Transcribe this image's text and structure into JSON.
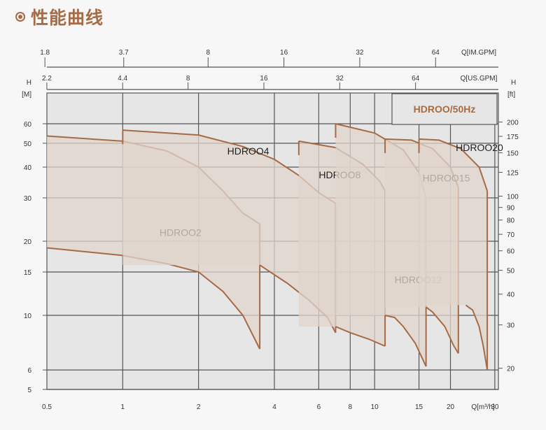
{
  "header": {
    "title": "性能曲线",
    "bullet_icon": "circle-bullet-icon",
    "accent_color": "#a66b45"
  },
  "chart_data": {
    "type": "area",
    "x_scale": "log",
    "y_scale": "log",
    "grid": true,
    "xlabel": "Q[m³/h]",
    "ylabel_left": "H",
    "ylabel_left_unit": "[M]",
    "ylabel_right": "H",
    "ylabel_right_unit": "[ft]",
    "top_axis_1_label": "Q[IM.GPM]",
    "top_axis_2_label": "Q[US.GPM]",
    "xlim": [
      0.5,
      31
    ],
    "ylim": [
      5,
      80
    ],
    "x_ticks": [
      0.5,
      1,
      2,
      4,
      6,
      8,
      10,
      15,
      20,
      30
    ],
    "x_tick_labels": [
      "0.5",
      "1",
      "2",
      "4",
      "6",
      "8",
      "10",
      "15",
      "20",
      "30"
    ],
    "y_ticks": [
      5,
      6,
      10,
      15,
      20,
      30,
      40,
      50,
      60
    ],
    "y_tick_labels": [
      "5",
      "6",
      "10",
      "15",
      "20",
      "30",
      "40",
      "50",
      "60"
    ],
    "right_ticks_ft": [
      20,
      30,
      40,
      50,
      60,
      70,
      80,
      90,
      100,
      125,
      150,
      175,
      200
    ],
    "right_tick_labels": [
      "20",
      "30",
      "40",
      "50",
      "60",
      "70",
      "80",
      "90",
      "100",
      "125",
      "150",
      "175",
      "200"
    ],
    "top_usgpm_ticks": [
      2.2,
      4.4,
      8,
      16,
      32,
      64
    ],
    "top_usgpm_labels": [
      "2.2",
      "4.4",
      "8",
      "16",
      "32",
      "64"
    ],
    "top_imgpm_ticks": [
      1.8,
      3.7,
      8,
      16,
      32,
      64
    ],
    "top_imgpm_labels": [
      "1.8",
      "3.7",
      "8",
      "16",
      "32",
      "64"
    ],
    "legend": "HDROO/50Hz",
    "legend_position": "top-right",
    "fill_color": "#e0d4cc",
    "line_color": "#a66b45",
    "series": [
      {
        "name": "HDROO2",
        "upper": [
          [
            0.5,
            53.5
          ],
          [
            1,
            51
          ],
          [
            1.5,
            46.5
          ],
          [
            2,
            40
          ],
          [
            2.5,
            32
          ],
          [
            3,
            26
          ],
          [
            3.5,
            23.5
          ]
        ],
        "lower": [
          [
            0.5,
            18.8
          ],
          [
            1,
            17.5
          ],
          [
            1.5,
            16.2
          ],
          [
            2,
            15
          ],
          [
            2.5,
            12.5
          ],
          [
            3,
            10
          ],
          [
            3.5,
            7.3
          ]
        ],
        "label_at": [
          1.4,
          21
        ]
      },
      {
        "name": "HDROO4",
        "upper": [
          [
            1,
            56.5
          ],
          [
            2,
            54
          ],
          [
            3,
            48.5
          ],
          [
            4,
            43
          ],
          [
            5,
            37
          ],
          [
            6,
            31.5
          ],
          [
            7,
            28.5
          ]
        ],
        "lower": [
          [
            3.5,
            16
          ],
          [
            4.5,
            13.5
          ],
          [
            5.5,
            11.5
          ],
          [
            6.5,
            9.8
          ],
          [
            7,
            8.5
          ]
        ],
        "label_at": [
          2.6,
          45
        ]
      },
      {
        "name": "HDROO8",
        "upper": [
          [
            5,
            51
          ],
          [
            7,
            48
          ],
          [
            9,
            41
          ],
          [
            10.5,
            35
          ],
          [
            11,
            32
          ]
        ],
        "lower": [
          [
            7,
            9
          ],
          [
            8,
            8.5
          ],
          [
            9.5,
            8
          ],
          [
            11,
            7.5
          ]
        ],
        "label_at": [
          6,
          36
        ]
      },
      {
        "name": "HDROO12",
        "upper": [
          [
            7,
            60
          ],
          [
            10,
            55
          ],
          [
            13,
            47
          ],
          [
            15,
            38
          ],
          [
            16,
            30
          ]
        ],
        "lower": [
          [
            11,
            10
          ],
          [
            12,
            9.8
          ],
          [
            13,
            9
          ],
          [
            14.5,
            7.7
          ],
          [
            16,
            6.2
          ]
        ],
        "label_at": [
          12,
          13.5
        ]
      },
      {
        "name": "HDROO15",
        "upper": [
          [
            11,
            52
          ],
          [
            14,
            51.5
          ],
          [
            17,
            47.5
          ],
          [
            20,
            40
          ],
          [
            21.5,
            33
          ]
        ],
        "lower": [
          [
            16,
            10.8
          ],
          [
            17,
            10.3
          ],
          [
            19,
            9
          ],
          [
            20.5,
            7.6
          ],
          [
            21.5,
            7
          ]
        ],
        "label_at": [
          15.5,
          35
        ]
      },
      {
        "name": "HDROO20",
        "upper": [
          [
            15,
            52
          ],
          [
            18,
            51.5
          ],
          [
            22,
            47.5
          ],
          [
            26,
            40
          ],
          [
            28,
            32
          ]
        ],
        "lower": [
          [
            23,
            11
          ],
          [
            24.5,
            10.5
          ],
          [
            26,
            9
          ],
          [
            27,
            7.5
          ],
          [
            28,
            6
          ]
        ],
        "label_at": [
          21,
          46.5
        ]
      }
    ]
  }
}
